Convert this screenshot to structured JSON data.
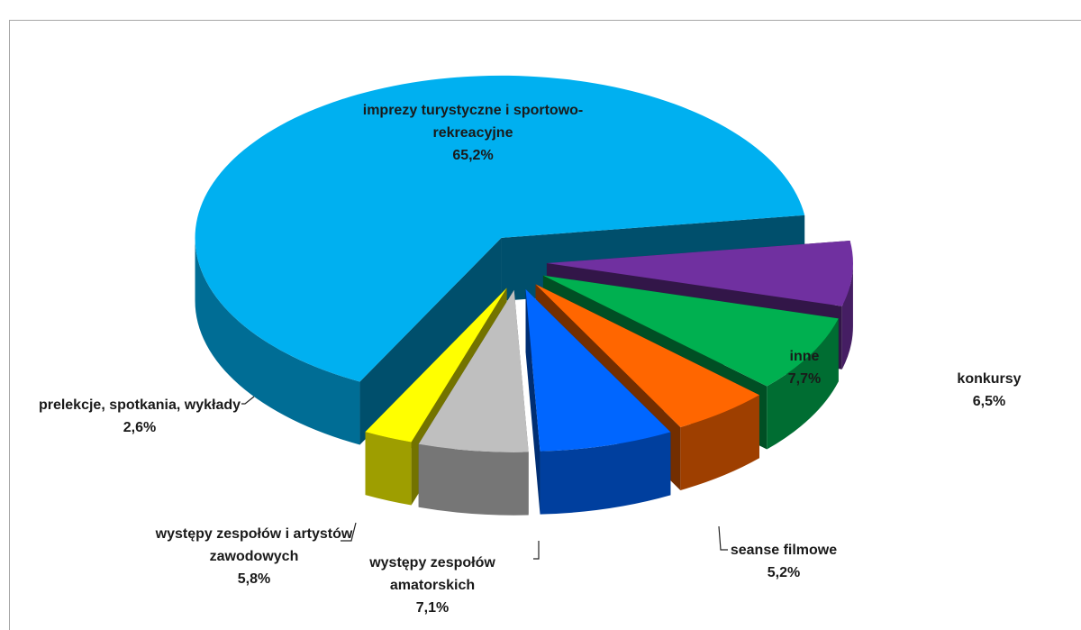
{
  "chart_data": {
    "type": "pie",
    "categories": [
      "konkursy",
      "inne",
      "seanse filmowe",
      "występy zespołów amatorskich",
      "występy zespołów i artystów zawodowych",
      "prelekcje, spotkania, wykłady",
      "imprezy turystyczne i sportowo-rekreacyjne"
    ],
    "values": [
      6.5,
      7.7,
      5.2,
      7.1,
      5.8,
      2.6,
      65.2
    ],
    "value_labels": [
      "6,5%",
      "7,7%",
      "5,2%",
      "7,1%",
      "5,8%",
      "2,6%",
      "65,2%"
    ],
    "colors": [
      "#7030a0",
      "#00b050",
      "#ff6600",
      "#0066ff",
      "#bfbfbf",
      "#ffff00",
      "#00b0f0"
    ]
  }
}
